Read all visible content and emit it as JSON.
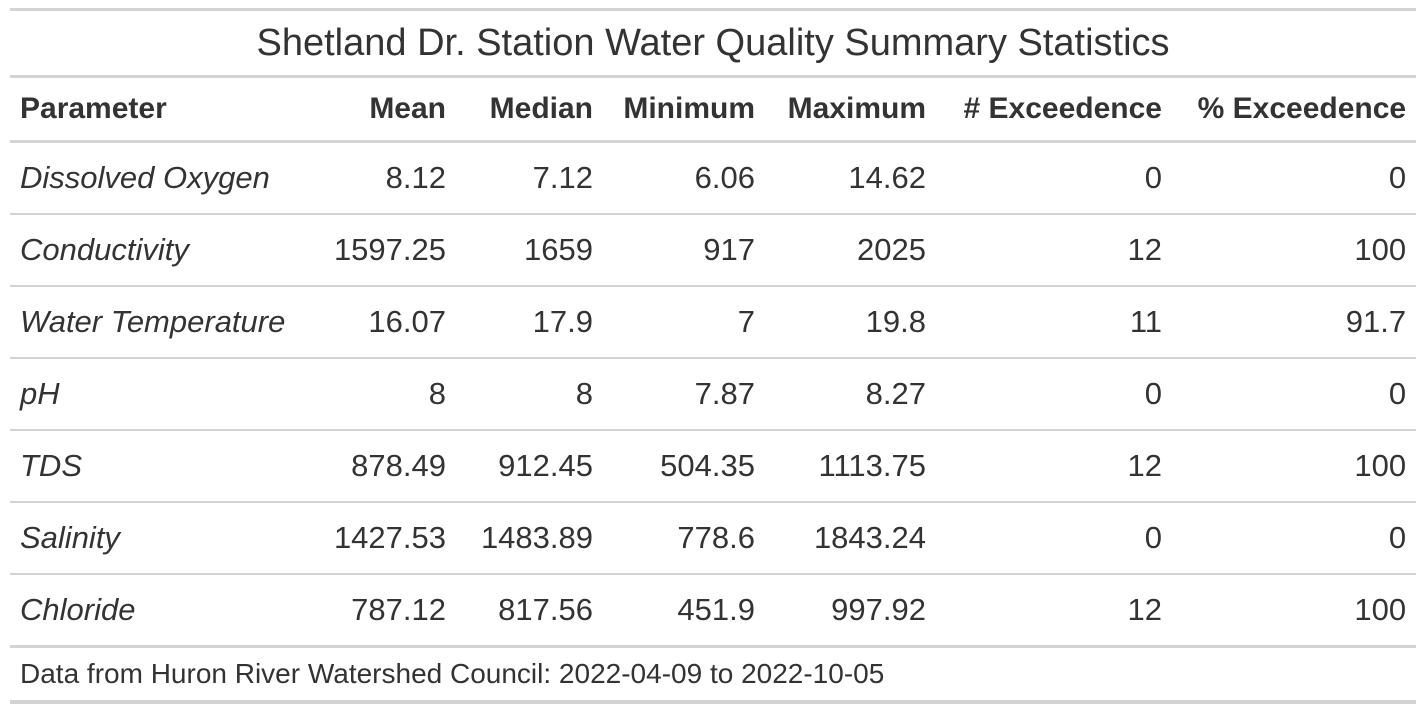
{
  "chart_data": {
    "type": "table",
    "title": "Shetland Dr. Station Water Quality Summary Statistics",
    "columns": [
      "Parameter",
      "Mean",
      "Median",
      "Minimum",
      "Maximum",
      "# Exceedence",
      "% Exceedence"
    ],
    "rows": [
      [
        "Dissolved Oxygen",
        "8.12",
        "7.12",
        "6.06",
        "14.62",
        "0",
        "0"
      ],
      [
        "Conductivity",
        "1597.25",
        "1659",
        "917",
        "2025",
        "12",
        "100"
      ],
      [
        "Water Temperature",
        "16.07",
        "17.9",
        "7",
        "19.8",
        "11",
        "91.7"
      ],
      [
        "pH",
        "8",
        "8",
        "7.87",
        "8.27",
        "0",
        "0"
      ],
      [
        "TDS",
        "878.49",
        "912.45",
        "504.35",
        "1113.75",
        "12",
        "100"
      ],
      [
        "Salinity",
        "1427.53",
        "1483.89",
        "778.6",
        "1843.24",
        "0",
        "0"
      ],
      [
        "Chloride",
        "787.12",
        "817.56",
        "451.9",
        "997.92",
        "12",
        "100"
      ]
    ],
    "source_note": "Data from Huron River Watershed Council: 2022-04-09 to 2022-10-05"
  }
}
